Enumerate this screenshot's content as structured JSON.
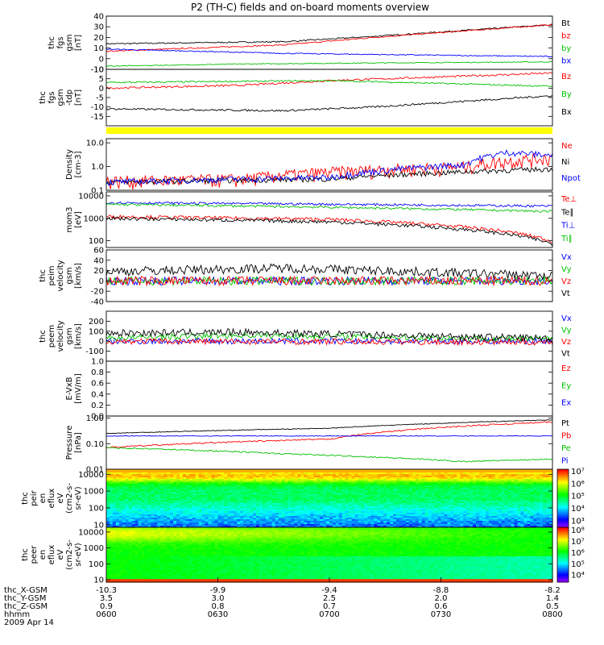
{
  "title": "P2 (TH-C) fields and on-board moments overview",
  "chart_data": [
    {
      "type": "line",
      "ylabel": [
        "thc",
        "fgs",
        "gsm",
        "[nT]"
      ],
      "ylim": [
        -10,
        40
      ],
      "yticks": [
        {
          "v": 40,
          "t": "40"
        },
        {
          "v": 30,
          "t": "30"
        },
        {
          "v": 20,
          "t": "20"
        },
        {
          "v": 10,
          "t": "10"
        },
        {
          "v": 0,
          "t": "0"
        },
        {
          "v": -10,
          "t": "-10"
        }
      ],
      "series": [
        {
          "name": "Bt",
          "color": "#000000",
          "x": [
            0,
            0.4,
            0.6,
            1
          ],
          "y": [
            14,
            16,
            21,
            32
          ],
          "noise": 0.6
        },
        {
          "name": "bz",
          "color": "#ff0000",
          "x": [
            0,
            0.4,
            0.6,
            1
          ],
          "y": [
            7,
            13,
            20,
            32
          ],
          "noise": 0.6
        },
        {
          "name": "by",
          "color": "#00c000",
          "x": [
            0,
            0.3,
            0.6,
            1
          ],
          "y": [
            -7,
            -5,
            -4,
            -3
          ],
          "noise": 0.4
        },
        {
          "name": "bx",
          "color": "#0000ff",
          "x": [
            0,
            0.4,
            1
          ],
          "y": [
            9,
            5,
            2
          ],
          "noise": 0.5
        }
      ]
    },
    {
      "type": "line",
      "ylabel": [
        "thc",
        "fgs",
        "gsm",
        "-tdp",
        "[nT]"
      ],
      "ylim": [
        -20,
        10
      ],
      "yticks": [
        {
          "v": 10,
          "t": "10"
        },
        {
          "v": 5,
          "t": "5"
        },
        {
          "v": 0,
          "t": "0"
        },
        {
          "v": -5,
          "t": "-5"
        },
        {
          "v": -10,
          "t": "-10"
        },
        {
          "v": -15,
          "t": "-15"
        }
      ],
      "series": [
        {
          "name": "Bz",
          "color": "#ff0000",
          "x": [
            0,
            0.3,
            0.5,
            1
          ],
          "y": [
            0,
            1.5,
            4,
            8
          ],
          "noise": 0.5
        },
        {
          "name": "By",
          "color": "#00c000",
          "x": [
            0,
            0.5,
            1
          ],
          "y": [
            3,
            4,
            1
          ],
          "noise": 0.4
        },
        {
          "name": "Bx",
          "color": "#000000",
          "x": [
            0,
            0.4,
            0.6,
            1
          ],
          "y": [
            -11,
            -12,
            -10,
            -4
          ],
          "noise": 0.5
        }
      ]
    },
    {
      "type": "line",
      "ylabel": [
        "Density",
        "[cm-3]"
      ],
      "scale": "log",
      "ylim": [
        0.1,
        15
      ],
      "yticks": [
        {
          "v": 10,
          "t": "10.0"
        },
        {
          "v": 1,
          "t": "1.0"
        },
        {
          "v": 0.1,
          "t": "0.1"
        }
      ],
      "series": [
        {
          "name": "Ne",
          "color": "#ff0000",
          "x": [
            0,
            0.3,
            0.5,
            0.8,
            1
          ],
          "y": [
            0.25,
            0.3,
            0.6,
            1.0,
            2.5
          ],
          "noise": 0.2
        },
        {
          "name": "Ni",
          "color": "#000000",
          "x": [
            0,
            0.5,
            1
          ],
          "y": [
            0.22,
            0.3,
            0.8
          ],
          "noise": 0.08
        },
        {
          "name": "Npot",
          "color": "#0000ff",
          "x": [
            0,
            0.5,
            0.8,
            0.9,
            1
          ],
          "y": [
            0.22,
            0.35,
            1.2,
            4,
            3
          ],
          "noise": 0.1
        }
      ]
    },
    {
      "type": "line",
      "ylabel": [
        "mom3",
        "[eV]"
      ],
      "scale": "log",
      "ylim": [
        50,
        15000
      ],
      "yticks": [
        {
          "v": 10000,
          "t": "10000"
        },
        {
          "v": 1000,
          "t": "1000"
        },
        {
          "v": 100,
          "t": "100"
        }
      ],
      "series": [
        {
          "name": "Te⊥",
          "color": "#ff0000",
          "x": [
            0,
            0.5,
            1
          ],
          "y": [
            1200,
            900,
            90
          ],
          "noise": 0.06
        },
        {
          "name": "Te∥",
          "color": "#000000",
          "x": [
            0,
            0.5,
            1
          ],
          "y": [
            1000,
            700,
            70
          ],
          "noise": 0.06
        },
        {
          "name": "Ti⊥",
          "color": "#0000ff",
          "x": [
            0,
            1
          ],
          "y": [
            5000,
            3500
          ],
          "noise": 0.04
        },
        {
          "name": "Ti∥",
          "color": "#00c000",
          "x": [
            0,
            1
          ],
          "y": [
            4200,
            2000
          ],
          "noise": 0.04
        }
      ]
    },
    {
      "type": "line",
      "ylabel": [
        "thc",
        "peim",
        "velocity",
        "gsm",
        "[km/s]"
      ],
      "ylim": [
        -40,
        60
      ],
      "yticks": [
        {
          "v": 60,
          "t": "60"
        },
        {
          "v": 40,
          "t": "40"
        },
        {
          "v": 20,
          "t": "20"
        },
        {
          "v": 0,
          "t": "0"
        },
        {
          "v": -20,
          "t": "-20"
        },
        {
          "v": -40,
          "t": "-40"
        }
      ],
      "series": [
        {
          "name": "Vx",
          "color": "#0000ff",
          "x": [
            0,
            1
          ],
          "y": [
            0,
            0
          ],
          "noise": 8
        },
        {
          "name": "Vy",
          "color": "#00c000",
          "x": [
            0,
            1
          ],
          "y": [
            0,
            0
          ],
          "noise": 8
        },
        {
          "name": "Vz",
          "color": "#ff0000",
          "x": [
            0,
            1
          ],
          "y": [
            0,
            0
          ],
          "noise": 9
        },
        {
          "name": "Vt",
          "color": "#000000",
          "x": [
            0,
            0.4,
            1
          ],
          "y": [
            18,
            25,
            10
          ],
          "noise": 9
        }
      ]
    },
    {
      "type": "line",
      "ylabel": [
        "thc",
        "peem",
        "velocity",
        "gsm",
        "[km/s]"
      ],
      "ylim": [
        -200,
        300
      ],
      "yticks": [
        {
          "v": 200,
          "t": "200"
        },
        {
          "v": 100,
          "t": "100"
        },
        {
          "v": 0,
          "t": "0"
        },
        {
          "v": -100,
          "t": "-100"
        }
      ],
      "series": [
        {
          "name": "Vx",
          "color": "#0000ff",
          "x": [
            0,
            1
          ],
          "y": [
            0,
            0
          ],
          "noise": 30
        },
        {
          "name": "Vy",
          "color": "#00c000",
          "x": [
            0,
            0.3,
            1
          ],
          "y": [
            30,
            60,
            20
          ],
          "noise": 30
        },
        {
          "name": "Vz",
          "color": "#ff0000",
          "x": [
            0,
            1
          ],
          "y": [
            0,
            -10
          ],
          "noise": 30
        },
        {
          "name": "Vt",
          "color": "#000000",
          "x": [
            0,
            0.3,
            1
          ],
          "y": [
            80,
            90,
            30
          ],
          "noise": 35
        }
      ]
    },
    {
      "type": "line",
      "ylabel": [
        "E-VxB",
        "[mV/m]"
      ],
      "ylim": [
        0,
        1
      ],
      "yticks": [
        {
          "v": 1,
          "t": "1.0"
        },
        {
          "v": 0.8,
          "t": "0.8"
        },
        {
          "v": 0.6,
          "t": "0.6"
        },
        {
          "v": 0.4,
          "t": "0.4"
        },
        {
          "v": 0.2,
          "t": "0.2"
        },
        {
          "v": 0,
          "t": "0.0"
        }
      ],
      "series": [
        {
          "name": "Ez",
          "color": "#ff0000",
          "x": [],
          "y": []
        },
        {
          "name": "Ey",
          "color": "#00c000",
          "x": [],
          "y": []
        },
        {
          "name": "Ex",
          "color": "#0000ff",
          "x": [],
          "y": []
        }
      ]
    },
    {
      "type": "line",
      "ylabel": [
        "Pressure",
        "[nPa]"
      ],
      "scale": "log",
      "ylim": [
        0.01,
        1.2
      ],
      "yticks": [
        {
          "v": 1,
          "t": "1.00"
        },
        {
          "v": 0.1,
          "t": "0.10"
        },
        {
          "v": 0.01,
          "t": "0.01"
        }
      ],
      "series": [
        {
          "name": "Pt",
          "color": "#000000",
          "x": [
            0,
            0.5,
            1
          ],
          "y": [
            0.25,
            0.4,
            0.85
          ],
          "noise": 0.01
        },
        {
          "name": "Pb",
          "color": "#ff0000",
          "x": [
            0,
            0.5,
            1
          ],
          "y": [
            0.07,
            0.15,
            0.7
          ],
          "noise": 0.02
        },
        {
          "name": "Pe",
          "color": "#00c000",
          "x": [
            0,
            0.4,
            0.8,
            1
          ],
          "y": [
            0.07,
            0.04,
            0.02,
            0.025
          ],
          "noise": 0.02
        },
        {
          "name": "Pi",
          "color": "#0000ff",
          "x": [
            0,
            1
          ],
          "y": [
            0.2,
            0.2
          ],
          "noise": 0.01
        }
      ]
    },
    {
      "type": "heatmap",
      "ylabel": [
        "thc",
        "peir",
        "en",
        "eflux",
        "eV",
        "(cm2-s-",
        "sr-eV)"
      ],
      "scale": "log",
      "ylim": [
        7,
        20000
      ],
      "yticks": [
        {
          "v": 10000,
          "t": "10000"
        },
        {
          "v": 1000,
          "t": "1000"
        },
        {
          "v": 100,
          "t": "100"
        },
        {
          "v": 10,
          "t": "10"
        }
      ],
      "colorbar": {
        "min": 2.5,
        "max": 7.2,
        "ticks": [
          {
            "v": 7,
            "t": "10⁷"
          },
          {
            "v": 6,
            "t": "10⁶"
          },
          {
            "v": 5,
            "t": "10⁵"
          },
          {
            "v": 4,
            "t": "10⁴"
          },
          {
            "v": 3,
            "t": "10³"
          }
        ]
      }
    },
    {
      "type": "heatmap",
      "ylabel": [
        "thc",
        "peer",
        "en",
        "eflux",
        "eV",
        "(cm2-s-",
        "sr-eV)"
      ],
      "scale": "log",
      "ylim": [
        7,
        20000
      ],
      "yticks": [
        {
          "v": 10000,
          "t": "10000"
        },
        {
          "v": 1000,
          "t": "1000"
        },
        {
          "v": 100,
          "t": "100"
        },
        {
          "v": 10,
          "t": "10"
        }
      ],
      "colorbar": {
        "min": 3.4,
        "max": 8.3,
        "ticks": [
          {
            "v": 8,
            "t": "10⁸"
          },
          {
            "v": 7,
            "t": "10⁷"
          },
          {
            "v": 6,
            "t": "10⁶"
          },
          {
            "v": 5,
            "t": "10⁵"
          },
          {
            "v": 4,
            "t": "10⁴"
          }
        ]
      }
    }
  ],
  "x_axis": {
    "rows": [
      {
        "label": "thc_X-GSM",
        "values": [
          "-10.3",
          "-9.9",
          "-9.4",
          "-8.8",
          "-8.2"
        ]
      },
      {
        "label": "thc_Y-GSM",
        "values": [
          "3.5",
          "3.0",
          "2.5",
          "2.0",
          "1.4"
        ]
      },
      {
        "label": "thc_Z-GSM",
        "values": [
          "0.9",
          "0.8",
          "0.7",
          "0.6",
          "0.5"
        ]
      },
      {
        "label": "hhmm",
        "values": [
          "0600",
          "0630",
          "0700",
          "0730",
          "0800"
        ]
      }
    ],
    "date": "2009 Apr 14"
  },
  "colors": {
    "yellow_bar": "#ffff00"
  }
}
